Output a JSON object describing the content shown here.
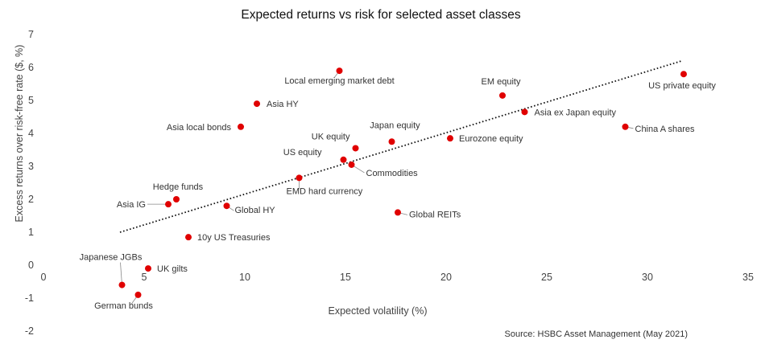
{
  "chart_data": {
    "type": "scatter",
    "title": "Expected returns vs risk for selected asset classes",
    "xlabel": "Expected volatility (%)",
    "ylabel": "Excess returns over risk-free rate ($, %)",
    "xlim": [
      0,
      35
    ],
    "ylim": [
      -2,
      7
    ],
    "xticks": [
      "0",
      "5",
      "10",
      "15",
      "20",
      "25",
      "30",
      "35"
    ],
    "yticks": [
      "-2",
      "-1",
      "0",
      "1",
      "2",
      "3",
      "4",
      "5",
      "6",
      "7"
    ],
    "grid": false,
    "legend": "none",
    "marker_color": "#e00000",
    "trendline": {
      "style": "dotted",
      "x": [
        3.8,
        31.7
      ],
      "y": [
        1.0,
        6.2
      ]
    },
    "points": [
      {
        "label": "Local emerging market debt",
        "x": 14.7,
        "y": 5.9
      },
      {
        "label": "Asia HY",
        "x": 10.6,
        "y": 4.9
      },
      {
        "label": "Asia local bonds",
        "x": 9.8,
        "y": 4.2
      },
      {
        "label": "EM equity",
        "x": 22.8,
        "y": 5.15
      },
      {
        "label": "US private equity",
        "x": 31.8,
        "y": 5.8
      },
      {
        "label": "Asia ex Japan equity",
        "x": 23.9,
        "y": 4.65
      },
      {
        "label": "China A shares",
        "x": 28.9,
        "y": 4.2
      },
      {
        "label": "Japan equity",
        "x": 17.3,
        "y": 3.75
      },
      {
        "label": "UK equity",
        "x": 15.5,
        "y": 3.55
      },
      {
        "label": "Eurozone equity",
        "x": 20.2,
        "y": 3.85
      },
      {
        "label": "US equity",
        "x": 14.9,
        "y": 3.2
      },
      {
        "label": "Commodities",
        "x": 15.3,
        "y": 3.05
      },
      {
        "label": "EMD hard currency",
        "x": 12.7,
        "y": 2.65
      },
      {
        "label": "Hedge funds",
        "x": 6.6,
        "y": 2.0
      },
      {
        "label": "Asia IG",
        "x": 6.2,
        "y": 1.85
      },
      {
        "label": "Global HY",
        "x": 9.1,
        "y": 1.8
      },
      {
        "label": "Global REITs",
        "x": 17.6,
        "y": 1.6
      },
      {
        "label": "10y US Treasuries",
        "x": 7.2,
        "y": 0.85
      },
      {
        "label": "Japanese JGBs",
        "x": 3.9,
        "y": -0.6
      },
      {
        "label": "UK gilts",
        "x": 5.2,
        "y": -0.1
      },
      {
        "label": "German bunds",
        "x": 4.7,
        "y": -0.9
      }
    ]
  },
  "source": "Source: HSBC Asset Management (May 2021)"
}
